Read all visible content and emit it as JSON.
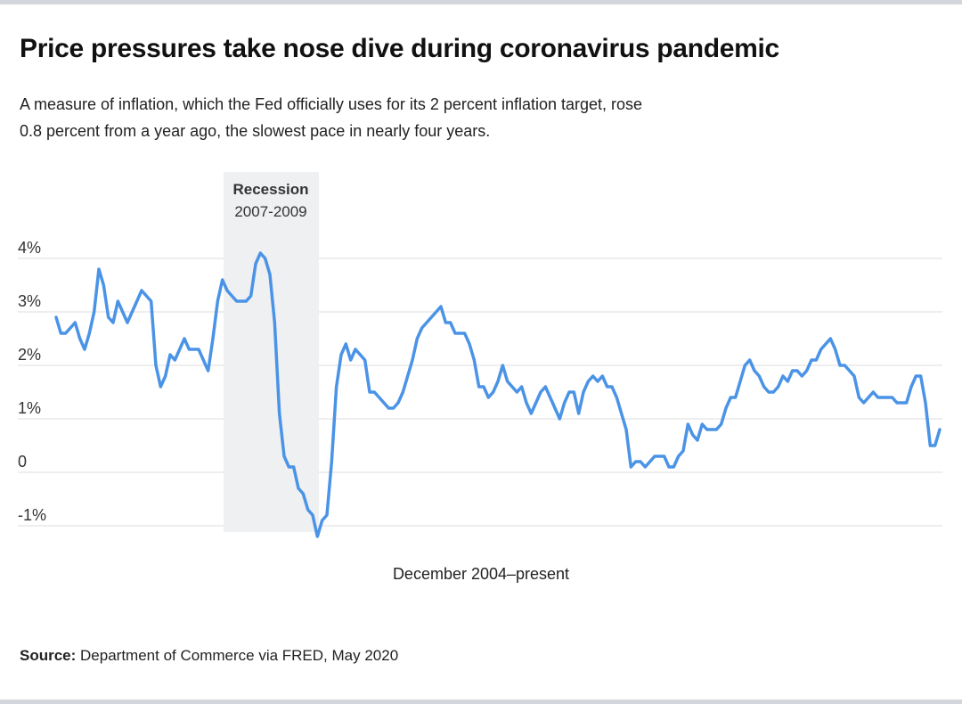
{
  "chart_data": {
    "type": "line",
    "title": "Price pressures take nose dive during coronavirus pandemic",
    "subtitle": "A measure of inflation, which the Fed officially uses for its 2 percent inflation target, rose 0.8 percent from a year ago, the slowest pace in nearly four years.",
    "x_label": "December 2004–present",
    "source_label": "Source:",
    "source_text": "Department of Commerce via FRED, May 2020",
    "annotation": {
      "title": "Recession",
      "text": "2007-2009"
    },
    "ylim": [
      -1.5,
      4.5
    ],
    "yticks": [
      {
        "value": 4,
        "label": "4%"
      },
      {
        "value": 3,
        "label": "3%"
      },
      {
        "value": 2,
        "label": "2%"
      },
      {
        "value": 1,
        "label": "1%"
      },
      0,
      {
        "value": -1,
        "label": "-1%"
      }
    ],
    "grid": true,
    "categories": [
      null,
      null,
      null,
      null,
      null,
      null,
      null,
      null,
      null,
      null,
      null,
      null,
      null,
      null,
      null,
      null,
      null,
      null,
      null,
      null,
      null,
      null,
      null,
      null,
      null,
      null,
      null,
      null,
      null,
      null,
      null,
      null,
      null,
      null,
      null,
      null,
      null,
      null,
      null,
      null,
      null,
      null,
      null,
      null,
      null,
      null,
      null,
      null,
      null,
      null,
      null,
      null,
      null,
      null,
      null,
      null,
      null,
      null,
      null,
      null,
      null,
      null,
      null,
      null,
      null,
      null,
      null,
      null,
      null,
      null,
      null,
      null,
      null,
      null,
      null,
      null,
      null,
      null,
      null,
      null,
      null,
      null,
      null,
      null,
      null,
      null,
      null,
      null,
      null,
      null,
      null,
      null,
      null,
      null,
      null,
      null,
      null,
      null,
      null,
      null,
      null,
      null,
      null,
      null,
      null,
      null,
      null,
      null,
      null,
      null,
      null,
      null,
      null,
      null,
      null,
      null,
      null,
      null,
      null,
      null,
      null,
      null,
      null,
      null,
      null,
      null,
      null,
      null,
      null,
      null,
      null,
      null,
      null,
      null,
      null,
      null,
      null,
      null,
      null,
      null,
      null,
      null,
      null,
      null,
      null,
      null,
      null,
      null,
      null,
      null,
      null,
      null,
      null,
      null,
      null,
      null,
      null,
      null,
      null,
      null,
      null,
      null,
      null,
      null,
      null,
      null,
      null,
      null,
      null,
      null,
      null,
      null,
      null,
      null,
      null,
      null,
      null,
      null,
      null,
      null,
      null,
      null,
      null,
      null,
      null,
      null,
      null
    ],
    "color": "#4a93e6",
    "values": [
      2.9,
      2.6,
      2.6,
      2.7,
      2.8,
      2.5,
      2.3,
      2.6,
      3.0,
      3.8,
      3.5,
      2.9,
      2.8,
      3.2,
      3.0,
      2.8,
      3.0,
      3.2,
      3.4,
      3.3,
      3.2,
      2.0,
      1.6,
      1.8,
      2.2,
      2.1,
      2.3,
      2.5,
      2.3,
      2.3,
      2.3,
      2.1,
      1.9,
      2.5,
      3.2,
      3.6,
      3.4,
      3.3,
      3.2,
      3.2,
      3.2,
      3.3,
      3.9,
      4.1,
      4.0,
      3.7,
      2.8,
      1.1,
      0.3,
      0.1,
      0.1,
      -0.3,
      -0.4,
      -0.7,
      -0.8,
      -1.2,
      -0.9,
      -0.8,
      0.2,
      1.6,
      2.2,
      2.4,
      2.1,
      2.3,
      2.2,
      2.1,
      1.5,
      1.5,
      1.4,
      1.3,
      1.2,
      1.2,
      1.3,
      1.5,
      1.8,
      2.1,
      2.5,
      2.7,
      2.8,
      2.9,
      3.0,
      3.1,
      2.8,
      2.8,
      2.6,
      2.6,
      2.6,
      2.4,
      2.1,
      1.6,
      1.6,
      1.4,
      1.5,
      1.7,
      2.0,
      1.7,
      1.6,
      1.5,
      1.6,
      1.3,
      1.1,
      1.3,
      1.5,
      1.6,
      1.4,
      1.2,
      1.0,
      1.3,
      1.5,
      1.5,
      1.1,
      1.5,
      1.7,
      1.8,
      1.7,
      1.8,
      1.6,
      1.6,
      1.4,
      1.1,
      0.8,
      0.1,
      0.2,
      0.2,
      0.1,
      0.2,
      0.3,
      0.3,
      0.3,
      0.1,
      0.1,
      0.3,
      0.4,
      0.9,
      0.7,
      0.6,
      0.9,
      0.8,
      0.8,
      0.8,
      0.9,
      1.2,
      1.4,
      1.4,
      1.7,
      2.0,
      2.1,
      1.9,
      1.8,
      1.6,
      1.5,
      1.5,
      1.6,
      1.8,
      1.7,
      1.9,
      1.9,
      1.8,
      1.9,
      2.1,
      2.1,
      2.3,
      2.4,
      2.5,
      2.3,
      2.0,
      2.0,
      1.9,
      1.8,
      1.4,
      1.3,
      1.4,
      1.5,
      1.4,
      1.4,
      1.4,
      1.4,
      1.3,
      1.3,
      1.3,
      1.6,
      1.8,
      1.8,
      1.3,
      0.5,
      0.5,
      0.8
    ]
  }
}
